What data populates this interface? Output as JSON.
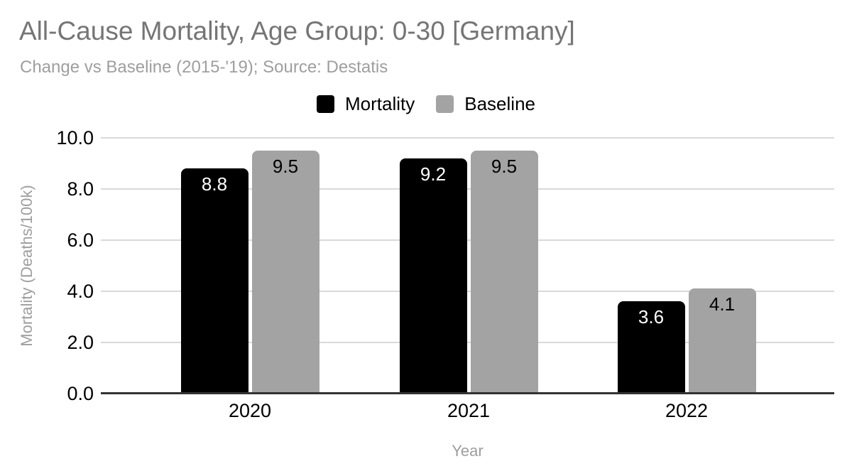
{
  "header": {
    "title": "All-Cause Mortality, Age Group: 0-30 [Germany]",
    "subtitle": "Change vs Baseline (2015-'19); Source: Destatis"
  },
  "colors": {
    "mortality_bar": "#000000",
    "baseline_bar": "#a3a3a3",
    "gridline": "#d9d9d9",
    "axis_line": "#333333",
    "title_text": "#757575",
    "muted_text": "#9e9e9e",
    "tick_text": "#000000",
    "label_on_mortality": "#ffffff",
    "label_on_baseline": "#000000"
  },
  "chart_data": {
    "type": "bar",
    "title": "All-Cause Mortality, Age Group: 0-30 [Germany]",
    "subtitle": "Change vs Baseline (2015-'19); Source: Destatis",
    "categories": [
      "2020",
      "2021",
      "2022"
    ],
    "series": [
      {
        "name": "Mortality",
        "color": "#000000",
        "label_color": "#ffffff",
        "values": [
          8.8,
          9.2,
          3.6
        ]
      },
      {
        "name": "Baseline",
        "color": "#a3a3a3",
        "label_color": "#000000",
        "values": [
          9.5,
          9.5,
          4.1
        ]
      }
    ],
    "data_labels": [
      [
        "8.8",
        "9.2",
        "3.6"
      ],
      [
        "9.5",
        "9.5",
        "4.1"
      ]
    ],
    "xlabel": "Year",
    "ylabel": "Mortality (Deaths/100k)",
    "ylim": [
      0,
      10
    ],
    "yticks": [
      "0.0",
      "2.0",
      "4.0",
      "6.0",
      "8.0",
      "10.0"
    ],
    "grid": true,
    "legend_position": "top"
  }
}
